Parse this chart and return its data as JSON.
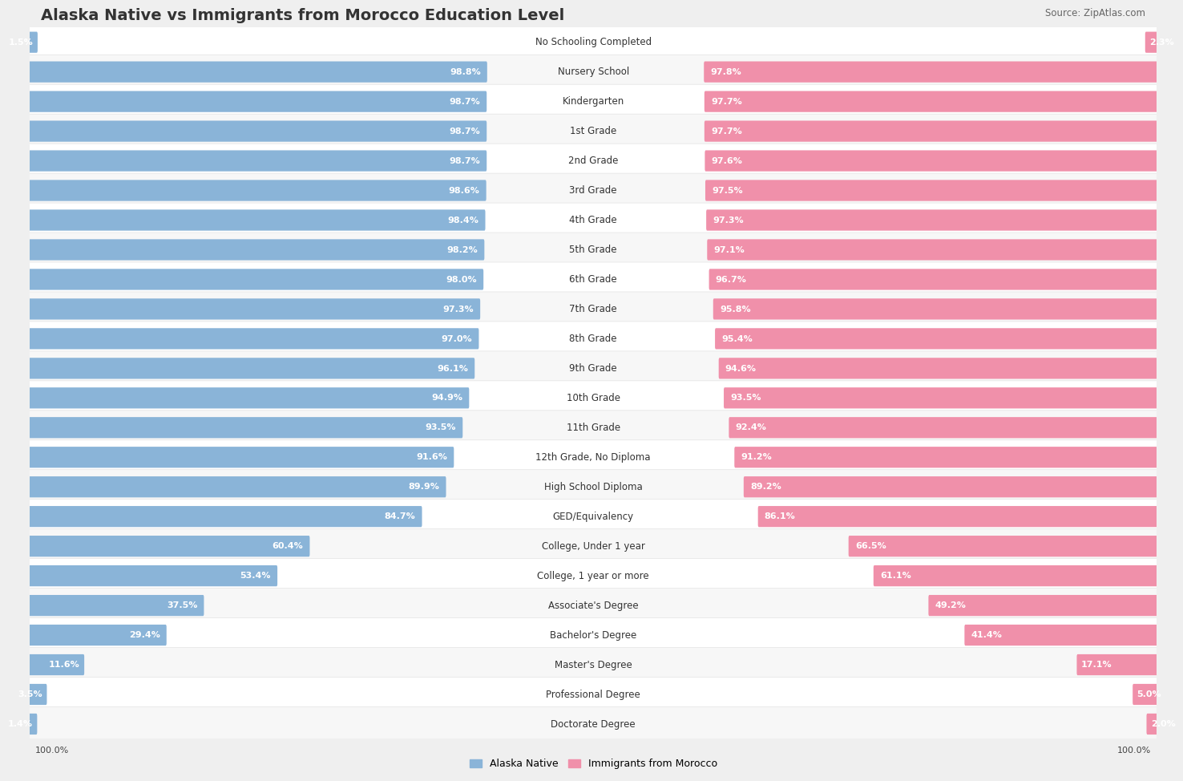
{
  "title": "Alaska Native vs Immigrants from Morocco Education Level",
  "source": "Source: ZipAtlas.com",
  "categories": [
    "No Schooling Completed",
    "Nursery School",
    "Kindergarten",
    "1st Grade",
    "2nd Grade",
    "3rd Grade",
    "4th Grade",
    "5th Grade",
    "6th Grade",
    "7th Grade",
    "8th Grade",
    "9th Grade",
    "10th Grade",
    "11th Grade",
    "12th Grade, No Diploma",
    "High School Diploma",
    "GED/Equivalency",
    "College, Under 1 year",
    "College, 1 year or more",
    "Associate's Degree",
    "Bachelor's Degree",
    "Master's Degree",
    "Professional Degree",
    "Doctorate Degree"
  ],
  "alaska_native": [
    1.5,
    98.8,
    98.7,
    98.7,
    98.7,
    98.6,
    98.4,
    98.2,
    98.0,
    97.3,
    97.0,
    96.1,
    94.9,
    93.5,
    91.6,
    89.9,
    84.7,
    60.4,
    53.4,
    37.5,
    29.4,
    11.6,
    3.5,
    1.4
  ],
  "morocco": [
    2.3,
    97.8,
    97.7,
    97.7,
    97.6,
    97.5,
    97.3,
    97.1,
    96.7,
    95.8,
    95.4,
    94.6,
    93.5,
    92.4,
    91.2,
    89.2,
    86.1,
    66.5,
    61.1,
    49.2,
    41.4,
    17.1,
    5.0,
    2.0
  ],
  "alaska_color": "#8ab4d8",
  "morocco_color": "#f090aa",
  "background_color": "#efefef",
  "row_color_odd": "#f7f7f7",
  "row_color_even": "#ffffff",
  "title_fontsize": 14,
  "label_fontsize": 8.5,
  "value_fontsize": 8,
  "legend_fontsize": 9,
  "source_fontsize": 8.5
}
